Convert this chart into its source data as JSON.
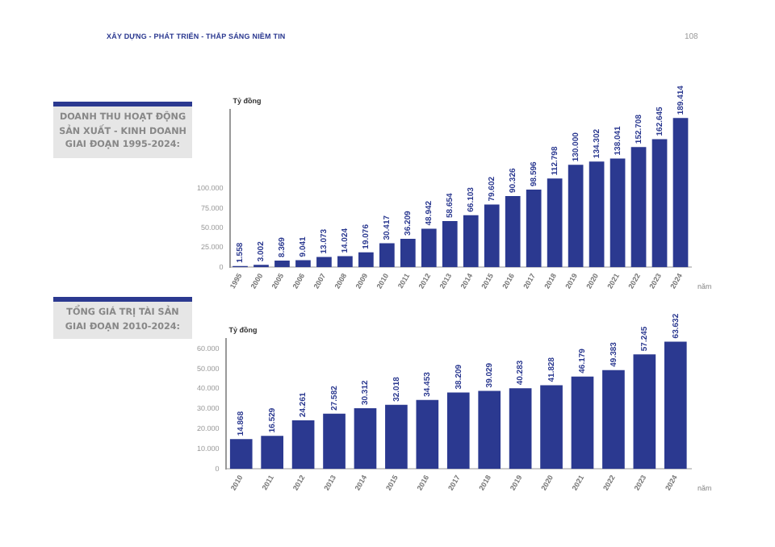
{
  "chart_data": [
    {
      "type": "bar",
      "title": "DOANH THU HOẠT ĐỘNG SẢN XUẤT - KINH DOANH GIAI ĐOẠN 1995-2024:",
      "ylabel": "Tỷ đồng",
      "xlabel": "năm",
      "annotations": [
        "XÂY DỰNG - PHÁT TRIỂN - THẮP SÁNG NIỀM TIN",
        "108"
      ],
      "categories": [
        "1995",
        "2000",
        "2005",
        "2006",
        "2007",
        "2008",
        "2009",
        "2010",
        "2011",
        "2012",
        "2013",
        "2014",
        "2015",
        "2016",
        "2017",
        "2018",
        "2019",
        "2020",
        "2021",
        "2022",
        "2023",
        "2024"
      ],
      "values": [
        1558,
        3002,
        8369,
        9041,
        13073,
        14024,
        19076,
        30417,
        36209,
        48942,
        58654,
        66103,
        79602,
        90326,
        98596,
        112798,
        130000,
        134302,
        138041,
        152708,
        162645,
        189414
      ],
      "value_labels": [
        "1.558",
        "3.002",
        "8.369",
        "9.041",
        "13.073",
        "14.024",
        "19.076",
        "30.417",
        "36.209",
        "48.942",
        "58.654",
        "66.103",
        "79.602",
        "90.326",
        "98.596",
        "112.798",
        "130.000",
        "134.302",
        "138.041",
        "152.708",
        "162.645",
        "189.414"
      ],
      "color": "#2b3990",
      "ylim": [
        0,
        200000
      ],
      "yticks": [
        0,
        {
          "value": 25000,
          "label": "25.000"
        },
        {
          "value": 50000,
          "label": "50.000"
        },
        {
          "value": 75000,
          "label": "75.000"
        },
        {
          "value": 100000,
          "label": "100.000"
        }
      ],
      "grid": false,
      "legend": false
    },
    {
      "type": "bar",
      "title": "TỔNG GIÁ TRỊ TÀI SẢN GIAI ĐOẠN 2010-2024:",
      "ylabel": "Tỷ đồng",
      "xlabel": "năm",
      "categories": [
        "2010",
        "2011",
        "2012",
        "2013",
        "2014",
        "2015",
        "2016",
        "2017",
        "2018",
        "2019",
        "2020",
        "2021",
        "2022",
        "2023",
        "2024"
      ],
      "values": [
        14868,
        16529,
        24261,
        27582,
        30312,
        32018,
        34453,
        38209,
        39029,
        40283,
        41828,
        46179,
        49383,
        57245,
        63632
      ],
      "value_labels": [
        "14.868",
        "16.529",
        "24.261",
        "27.582",
        "30.312",
        "32.018",
        "34.453",
        "38.209",
        "39.029",
        "40.283",
        "41.828",
        "46.179",
        "49.383",
        "57.245",
        "63.632"
      ],
      "color": "#2b3990",
      "ylim": [
        0,
        65000
      ],
      "yticks": [
        0,
        {
          "value": 10000,
          "label": "10.000"
        },
        {
          "value": 20000,
          "label": "20.000"
        },
        {
          "value": 30000,
          "label": "30.000"
        },
        {
          "value": 40000,
          "label": "40.000"
        },
        {
          "value": 50000,
          "label": "50.000"
        },
        {
          "value": 60000,
          "label": "60.000"
        }
      ],
      "grid": false,
      "legend": false
    }
  ]
}
